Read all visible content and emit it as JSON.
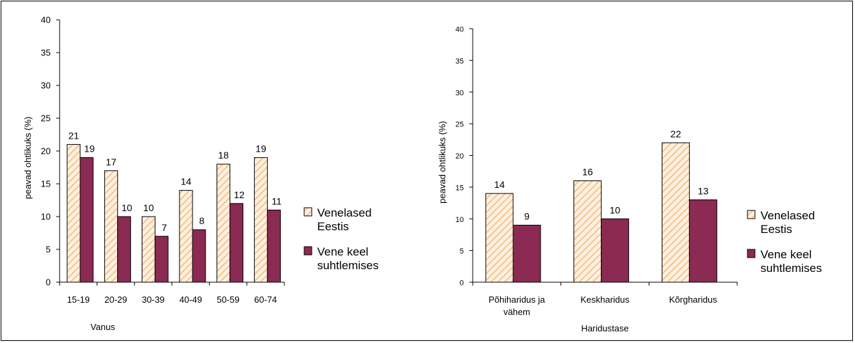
{
  "colors": {
    "series1_fill": "#fdf0e0",
    "series1_hatch": "#f6b87a",
    "series2_fill": "#8b2a52",
    "axis": "#000000",
    "background": "#ffffff"
  },
  "chart_data": [
    {
      "type": "bar",
      "title": "",
      "xlabel": "Vanus",
      "ylabel": "peavad ohtlikuks (%)",
      "ylim": [
        0,
        40
      ],
      "yticks": [
        0,
        5,
        10,
        15,
        20,
        25,
        30,
        35,
        40
      ],
      "grid": false,
      "legend_position": "right",
      "categories": [
        "15-19",
        "20-29",
        "30-39",
        "40-49",
        "50-59",
        "60-74"
      ],
      "series": [
        {
          "name": "Venelased Eestis",
          "legend_lines": [
            "Venelased",
            "Eestis"
          ],
          "pattern": "hatch",
          "values": [
            21,
            17,
            10,
            14,
            18,
            19
          ]
        },
        {
          "name": "Vene keel suhtlemises",
          "legend_lines": [
            "Vene keel",
            "suhtlemises"
          ],
          "pattern": "solid",
          "values": [
            19,
            10,
            7,
            8,
            12,
            11
          ]
        }
      ]
    },
    {
      "type": "bar",
      "title": "",
      "xlabel": "Haridustase",
      "ylabel": "peavad ohtlikuks (%)",
      "ylim": [
        0,
        40
      ],
      "yticks": [
        0,
        5,
        10,
        15,
        20,
        25,
        30,
        35,
        40
      ],
      "grid": false,
      "legend_position": "right",
      "categories": [
        "Põhiharidus ja vähem",
        "Keskharidus",
        "Kõrgharidus"
      ],
      "category_lines": [
        [
          "Põhiharidus ja",
          "vähem"
        ],
        [
          "Keskharidus"
        ],
        [
          "Kõrgharidus"
        ]
      ],
      "series": [
        {
          "name": "Venelased Eestis",
          "legend_lines": [
            "Venelased",
            "Eestis"
          ],
          "pattern": "hatch",
          "values": [
            14,
            16,
            22
          ]
        },
        {
          "name": "Vene keel suhtlemises",
          "legend_lines": [
            "Vene keel",
            "suhtlemises"
          ],
          "pattern": "solid",
          "values": [
            9,
            10,
            13
          ]
        }
      ]
    }
  ]
}
